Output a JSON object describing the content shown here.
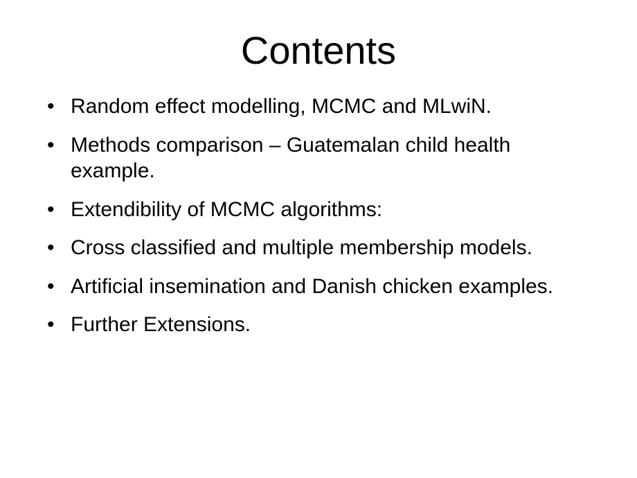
{
  "slide": {
    "title": "Contents",
    "title_fontsize": 56,
    "body_fontsize": 30,
    "background_color": "#ffffff",
    "text_color": "#000000",
    "font_family": "Arial",
    "bullets": [
      "Random effect modelling, MCMC and MLwiN.",
      "Methods comparison – Guatemalan child health example.",
      "Extendibility of MCMC algorithms:",
      "Cross classified and multiple membership models.",
      "Artificial insemination and Danish chicken examples.",
      "Further Extensions."
    ]
  }
}
